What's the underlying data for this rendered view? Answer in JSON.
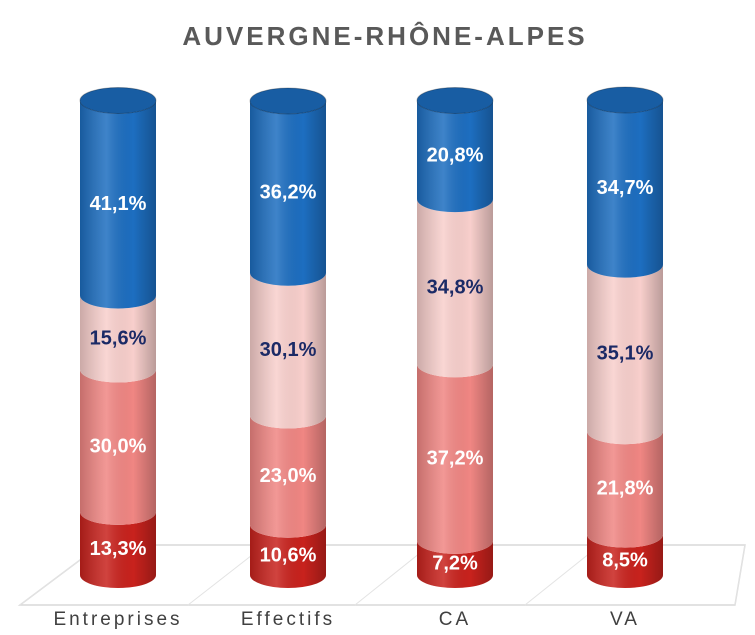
{
  "chart_data": {
    "type": "stacked-cylinder",
    "title": "AUVERGNE-RHÔNE-ALPES",
    "categories": [
      "Entreprises",
      "Effectifs",
      "CA",
      "VA"
    ],
    "series": [
      {
        "color": "#c8221d",
        "values": [
          13.3,
          10.6,
          7.2,
          8.5
        ],
        "value_labels": [
          "13,3%",
          "10,6%",
          "7,2%",
          "8,5%"
        ],
        "label_color": "#ffffff"
      },
      {
        "color": "#f08683",
        "values": [
          30.0,
          23.0,
          37.2,
          21.8
        ],
        "value_labels": [
          "30,0%",
          "23,0%",
          "37,2%",
          "21,8%"
        ],
        "label_color": "#ffffff"
      },
      {
        "color": "#f8cfcc",
        "values": [
          15.6,
          30.1,
          34.8,
          35.1
        ],
        "value_labels": [
          "15,6%",
          "30,1%",
          "34,8%",
          "35,1%"
        ],
        "label_color": "#1b2a66"
      },
      {
        "color": "#1d6ec0",
        "values": [
          41.1,
          36.2,
          20.8,
          34.7
        ],
        "value_labels": [
          "41,1%",
          "36,2%",
          "20,8%",
          "34,7%"
        ],
        "label_color": "#ffffff"
      }
    ]
  }
}
